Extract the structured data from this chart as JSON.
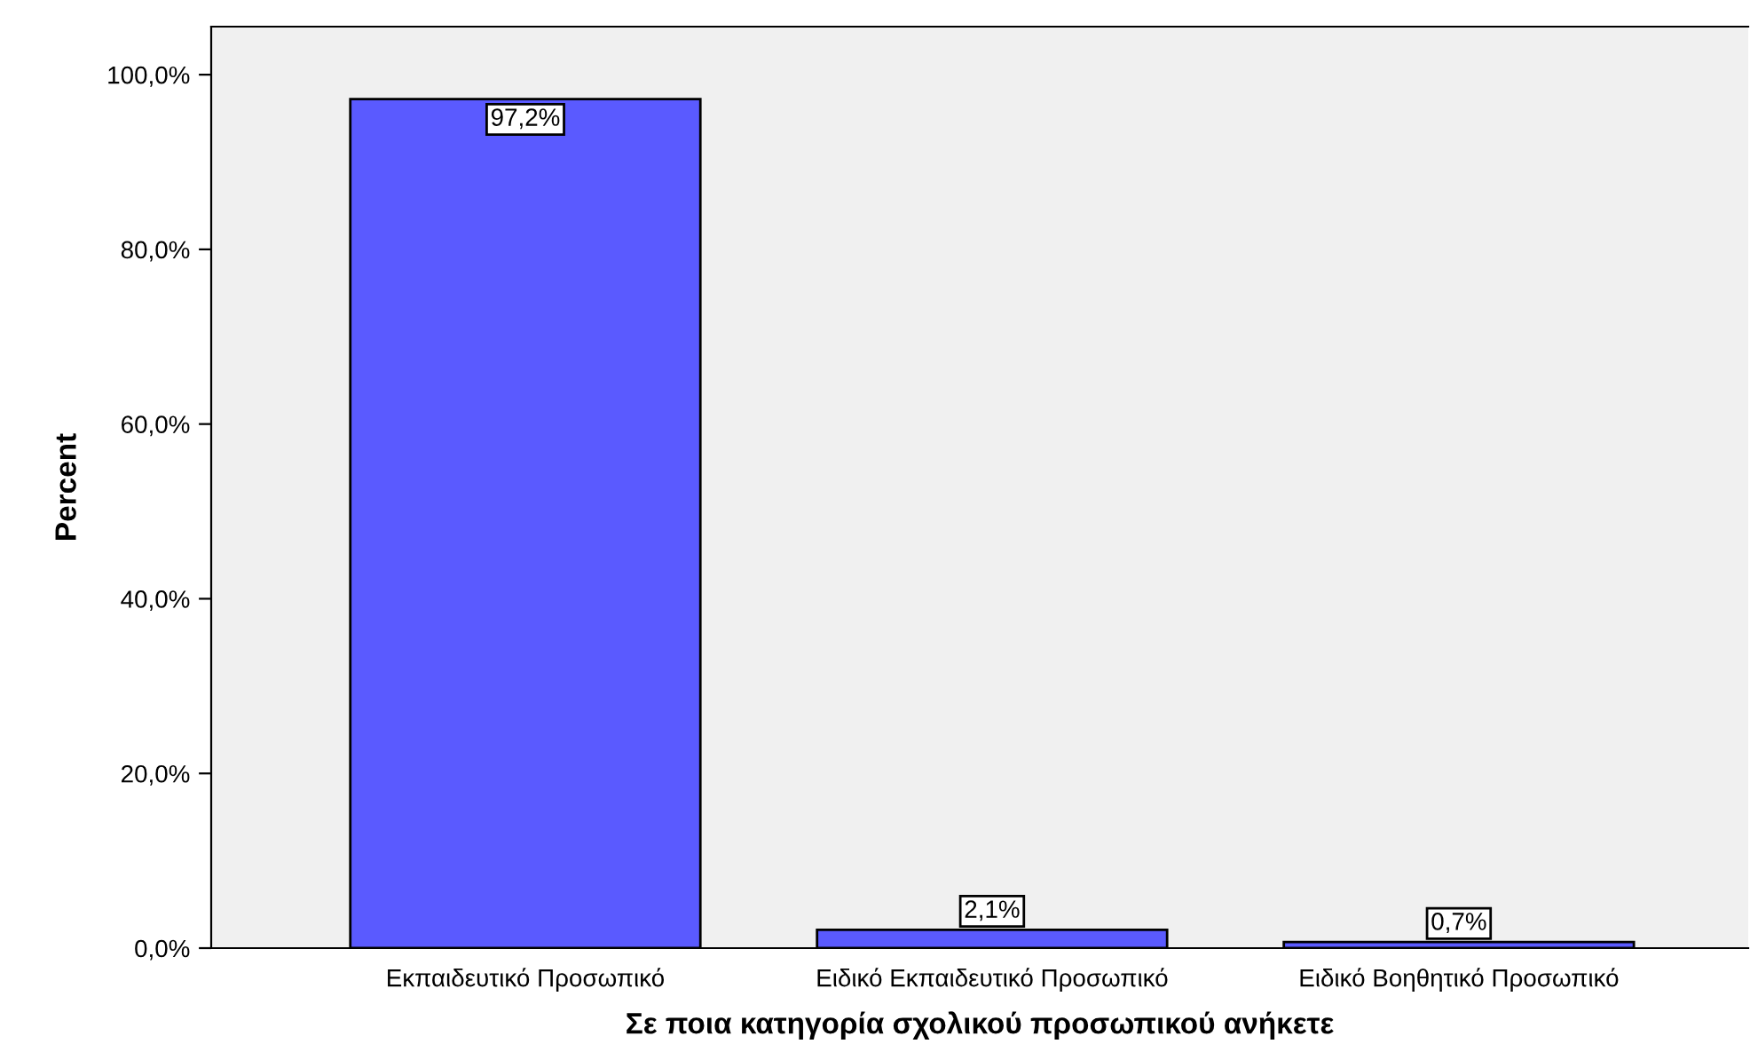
{
  "chart_data": {
    "type": "bar",
    "xlabel": "Σε ποια κατηγορία σχολικού προσωπικού ανήκετε",
    "ylabel": "Percent",
    "categories": [
      "Εκπαιδευτικό Προσωπικό",
      "Ειδικό Εκπαιδευτικό Προσωπικό",
      "Ειδικό Βοηθητικό Προσωπικό"
    ],
    "values": [
      97.2,
      2.1,
      0.7
    ],
    "value_labels": [
      "97,2%",
      "2,1%",
      "0,7%"
    ],
    "color": "#5a5aff",
    "ylim": [
      0,
      105.5
    ],
    "yticks": [
      {
        "value": 0,
        "label": "0,0%"
      },
      {
        "value": 20,
        "label": "20,0%"
      },
      {
        "value": 40,
        "label": "40,0%"
      },
      {
        "value": 60,
        "label": "60,0%"
      },
      {
        "value": 80,
        "label": "80,0%"
      },
      {
        "value": 100,
        "label": "100,0%"
      }
    ],
    "grid": false,
    "legend": false
  }
}
